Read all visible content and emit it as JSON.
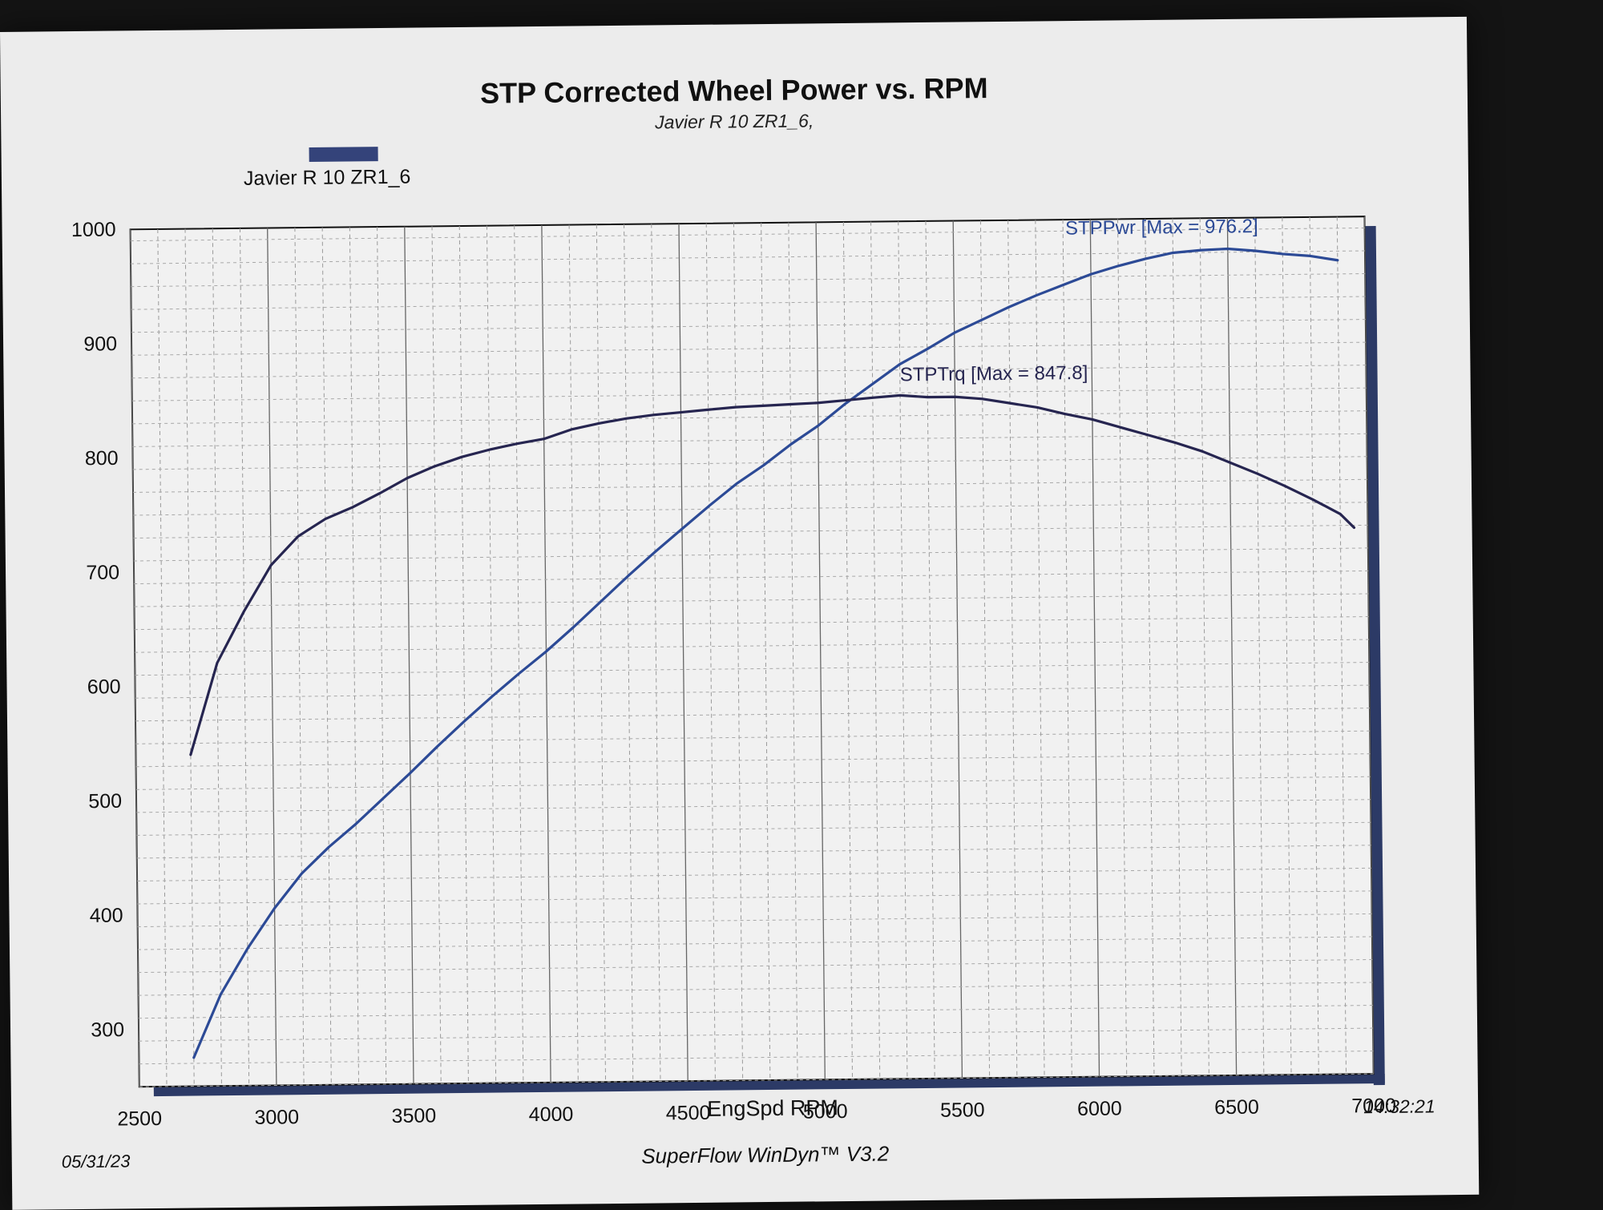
{
  "header": {
    "title": "STP Corrected Wheel Power vs. RPM",
    "subtitle": "Javier R 10 ZR1_6,"
  },
  "legend": {
    "label": "Javier R 10 ZR1_6",
    "swatch_color": "#34437a"
  },
  "footer": {
    "date": "05/31/23",
    "time": "14:32:21",
    "software": "SuperFlow WinDyn™ V3.2"
  },
  "chart_data": {
    "type": "line",
    "title": "STP Corrected Wheel Power vs. RPM",
    "xlabel": "EngSpd RPM",
    "ylabel": "",
    "xlim": [
      2500,
      7000
    ],
    "ylim": [
      250,
      1000
    ],
    "grid": true,
    "x_ticks": [
      "2500",
      "3000",
      "3500",
      "4000",
      "4500",
      "5000",
      "5500",
      "6000",
      "6500",
      "7000"
    ],
    "y_ticks": [
      "300",
      "400",
      "500",
      "600",
      "700",
      "800",
      "900",
      "1000"
    ],
    "series": [
      {
        "name": "STPPwr",
        "annotation": "STPPwr [Max = 976.2]",
        "color": "#2c4a96",
        "x": [
          2700,
          2800,
          2900,
          3000,
          3100,
          3200,
          3300,
          3400,
          3500,
          3600,
          3700,
          3800,
          3900,
          4000,
          4100,
          4200,
          4300,
          4400,
          4500,
          4600,
          4700,
          4800,
          4900,
          5000,
          5100,
          5200,
          5300,
          5400,
          5500,
          5600,
          5700,
          5800,
          5900,
          6000,
          6100,
          6200,
          6300,
          6400,
          6500,
          6600,
          6700,
          6800,
          6900
        ],
        "y": [
          275,
          330,
          370,
          405,
          435,
          458,
          478,
          500,
          522,
          545,
          567,
          588,
          608,
          627,
          648,
          670,
          692,
          713,
          733,
          753,
          772,
          788,
          806,
          822,
          841,
          858,
          875,
          888,
          902,
          913,
          924,
          934,
          943,
          952,
          959,
          965,
          970,
          972,
          973,
          971,
          968,
          966,
          962
        ]
      },
      {
        "name": "STPTrq",
        "annotation": "STPTrq [Max = 847.8]",
        "color": "#262550",
        "x": [
          2700,
          2800,
          2900,
          3000,
          3100,
          3200,
          3300,
          3400,
          3500,
          3600,
          3700,
          3800,
          3900,
          4000,
          4100,
          4200,
          4300,
          4400,
          4500,
          4600,
          4700,
          4800,
          4900,
          5000,
          5100,
          5200,
          5300,
          5400,
          5500,
          5600,
          5700,
          5800,
          5900,
          6000,
          6100,
          6200,
          6300,
          6400,
          6500,
          6600,
          6700,
          6800,
          6900,
          6950
        ],
        "y": [
          540,
          620,
          665,
          705,
          730,
          745,
          755,
          767,
          780,
          790,
          798,
          804,
          809,
          813,
          821,
          826,
          830,
          833,
          835,
          837,
          839,
          840,
          841,
          842,
          844,
          846,
          847.8,
          846,
          846,
          844,
          840,
          836,
          830,
          825,
          818,
          811,
          804,
          796,
          786,
          776,
          765,
          753,
          740,
          728
        ]
      }
    ]
  }
}
